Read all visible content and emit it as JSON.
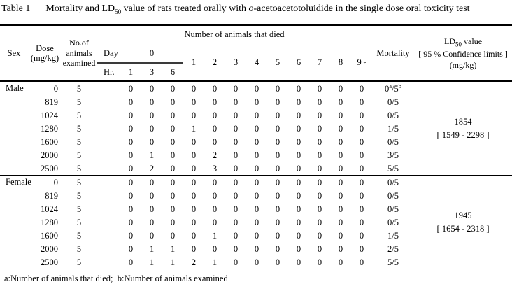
{
  "title": {
    "label": "Table 1",
    "part1": "Mortality and LD",
    "sub": "50",
    "part2": " value of rats treated orally with ",
    "italic": "o",
    "part3": "-acetoacetotoluidide in the single dose oral toxicity test"
  },
  "header": {
    "sex": "Sex",
    "dose_line1": "Dose",
    "dose_line2": "(mg/kg)",
    "animals": "No.of animals examined",
    "died_group": "Number of animals that died",
    "day_label": "Day",
    "day0": "0",
    "day_numbers": [
      "1",
      "2",
      "3",
      "4",
      "5",
      "6",
      "7",
      "8",
      "9~"
    ],
    "hr_label": "Hr.",
    "hr_numbers": [
      "1",
      "3",
      "6"
    ],
    "mortality": "Mortality",
    "ld50_line1_pre": "LD",
    "ld50_sub": "50",
    "ld50_line1_post": " value",
    "ld50_line2": "[ 95 % Confidence limits ]",
    "ld50_line3": "(mg/kg)"
  },
  "groups": [
    {
      "sex": "Male",
      "rows": [
        {
          "dose": "0",
          "n": "5",
          "deaths": [
            "0",
            "0",
            "0",
            "0",
            "0",
            "0",
            "0",
            "0",
            "0",
            "0",
            "0",
            "0"
          ],
          "mortality": "0^a/5^b"
        },
        {
          "dose": "819",
          "n": "5",
          "deaths": [
            "0",
            "0",
            "0",
            "0",
            "0",
            "0",
            "0",
            "0",
            "0",
            "0",
            "0",
            "0"
          ],
          "mortality": "0/5"
        },
        {
          "dose": "1024",
          "n": "5",
          "deaths": [
            "0",
            "0",
            "0",
            "0",
            "0",
            "0",
            "0",
            "0",
            "0",
            "0",
            "0",
            "0"
          ],
          "mortality": "0/5"
        },
        {
          "dose": "1280",
          "n": "5",
          "deaths": [
            "0",
            "0",
            "0",
            "1",
            "0",
            "0",
            "0",
            "0",
            "0",
            "0",
            "0",
            "0"
          ],
          "mortality": "1/5"
        },
        {
          "dose": "1600",
          "n": "5",
          "deaths": [
            "0",
            "0",
            "0",
            "0",
            "0",
            "0",
            "0",
            "0",
            "0",
            "0",
            "0",
            "0"
          ],
          "mortality": "0/5"
        },
        {
          "dose": "2000",
          "n": "5",
          "deaths": [
            "0",
            "1",
            "0",
            "0",
            "2",
            "0",
            "0",
            "0",
            "0",
            "0",
            "0",
            "0"
          ],
          "mortality": "3/5"
        },
        {
          "dose": "2500",
          "n": "5",
          "deaths": [
            "0",
            "2",
            "0",
            "0",
            "3",
            "0",
            "0",
            "0",
            "0",
            "0",
            "0",
            "0"
          ],
          "mortality": "5/5"
        }
      ],
      "ld50": {
        "value": "1854",
        "ci": "[ 1549 - 2298 ]"
      }
    },
    {
      "sex": "Female",
      "rows": [
        {
          "dose": "0",
          "n": "5",
          "deaths": [
            "0",
            "0",
            "0",
            "0",
            "0",
            "0",
            "0",
            "0",
            "0",
            "0",
            "0",
            "0"
          ],
          "mortality": "0/5"
        },
        {
          "dose": "819",
          "n": "5",
          "deaths": [
            "0",
            "0",
            "0",
            "0",
            "0",
            "0",
            "0",
            "0",
            "0",
            "0",
            "0",
            "0"
          ],
          "mortality": "0/5"
        },
        {
          "dose": "1024",
          "n": "5",
          "deaths": [
            "0",
            "0",
            "0",
            "0",
            "0",
            "0",
            "0",
            "0",
            "0",
            "0",
            "0",
            "0"
          ],
          "mortality": "0/5"
        },
        {
          "dose": "1280",
          "n": "5",
          "deaths": [
            "0",
            "0",
            "0",
            "0",
            "0",
            "0",
            "0",
            "0",
            "0",
            "0",
            "0",
            "0"
          ],
          "mortality": "0/5"
        },
        {
          "dose": "1600",
          "n": "5",
          "deaths": [
            "0",
            "0",
            "0",
            "0",
            "1",
            "0",
            "0",
            "0",
            "0",
            "0",
            "0",
            "0"
          ],
          "mortality": "1/5"
        },
        {
          "dose": "2000",
          "n": "5",
          "deaths": [
            "0",
            "1",
            "1",
            "0",
            "0",
            "0",
            "0",
            "0",
            "0",
            "0",
            "0",
            "0"
          ],
          "mortality": "2/5"
        },
        {
          "dose": "2500",
          "n": "5",
          "deaths": [
            "0",
            "1",
            "1",
            "2",
            "1",
            "0",
            "0",
            "0",
            "0",
            "0",
            "0",
            "0"
          ],
          "mortality": "5/5"
        }
      ],
      "ld50": {
        "value": "1945",
        "ci": "[ 1654 - 2318 ]"
      }
    }
  ],
  "footnote": "a:Number of animals that died;  b:Number of animals examined"
}
